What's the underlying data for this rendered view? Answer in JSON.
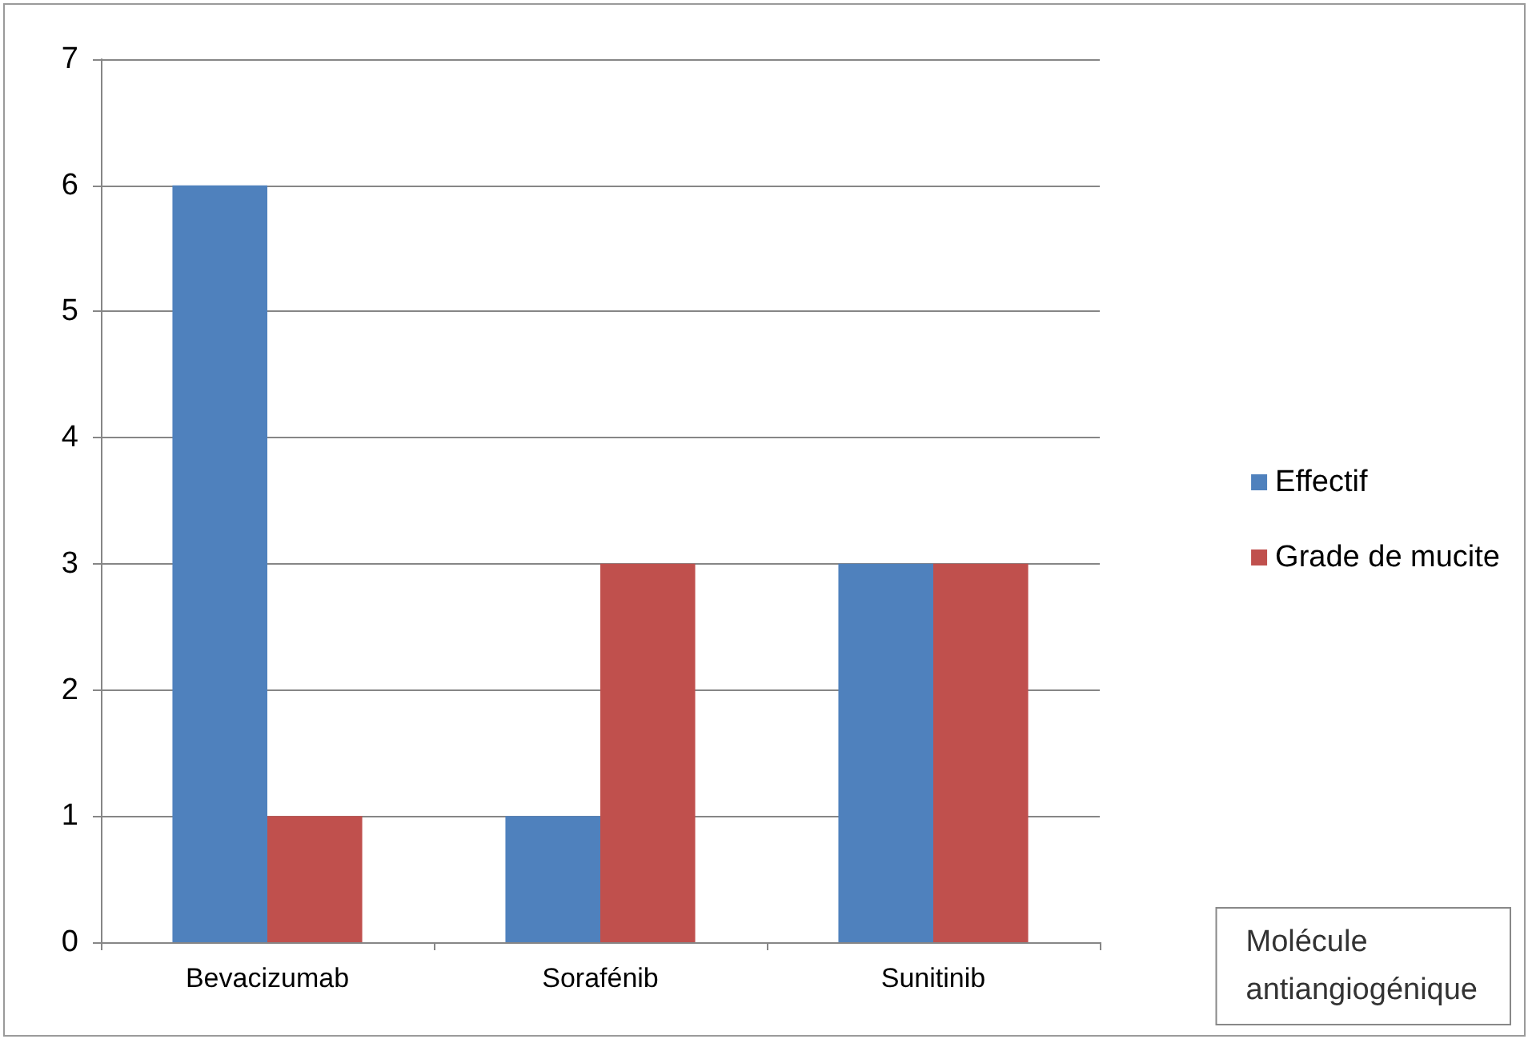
{
  "chart_data": {
    "type": "bar",
    "xlabel": "Molécule\nantiangiogénique",
    "categories": [
      "Bevacizumab",
      "Sorafénib",
      "Sunitinib"
    ],
    "series": [
      {
        "name": "Effectif",
        "color": "#4f81bd",
        "values": [
          6,
          1,
          3
        ]
      },
      {
        "name": "Grade de mucite",
        "color": "#c0504d",
        "values": [
          1,
          3,
          3
        ]
      }
    ],
    "ylim": [
      0,
      7
    ],
    "yticks": [
      0,
      1,
      2,
      3,
      4,
      5,
      6,
      7
    ],
    "grid": "y",
    "legend": "right"
  }
}
